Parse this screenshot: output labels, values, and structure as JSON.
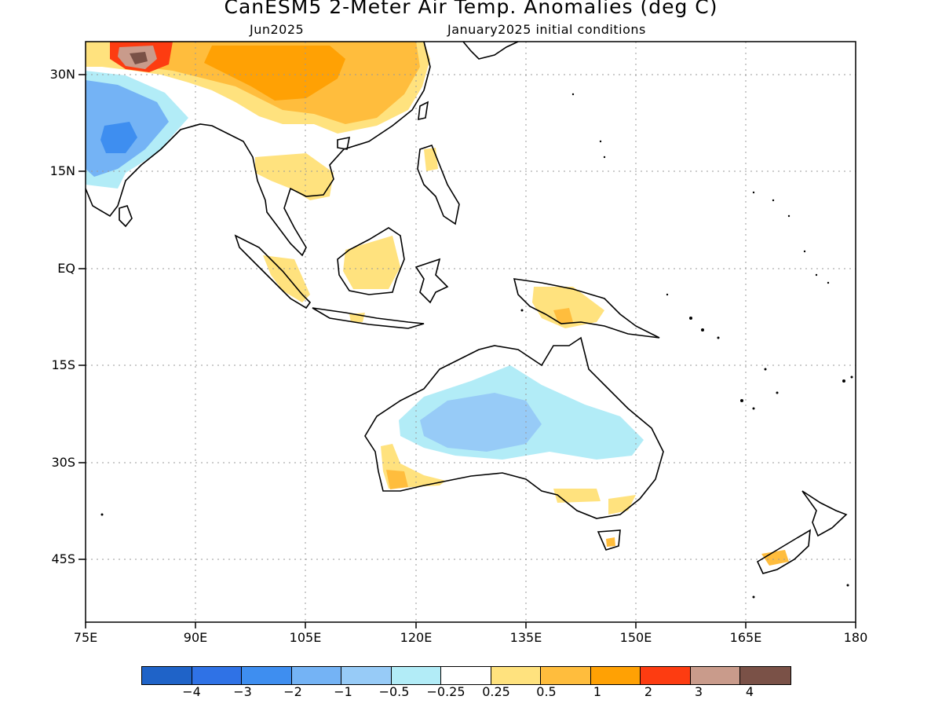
{
  "title": "CanESM5 2-Meter Air Temp. Anomalies (deg C)",
  "valid_month": "Jun2025",
  "init_conditions": "January2025 initial conditions",
  "lat_labels": [
    "30N",
    "15N",
    "EQ",
    "15S",
    "30S",
    "45S"
  ],
  "lon_labels": [
    "75E",
    "90E",
    "105E",
    "120E",
    "135E",
    "150E",
    "165E",
    "180"
  ],
  "legend": {
    "colors": [
      "#1f63c8",
      "#2f72e6",
      "#3e8ef0",
      "#74b3f5",
      "#97cbf7",
      "#b2ecf7",
      "#ffffff",
      "#ffe27e",
      "#ffbd3d",
      "#ffa104",
      "#fd3c11",
      "#c99b8b",
      "#7a5147"
    ],
    "labels": [
      "−4",
      "−3",
      "−2",
      "−1",
      "−0.5",
      "−0.25",
      "0.25",
      "0.5",
      "1",
      "2",
      "3",
      "4"
    ]
  },
  "map_extent": {
    "lon_min": 75,
    "lon_max": 180,
    "lat_min": -55,
    "lat_max": 35
  }
}
